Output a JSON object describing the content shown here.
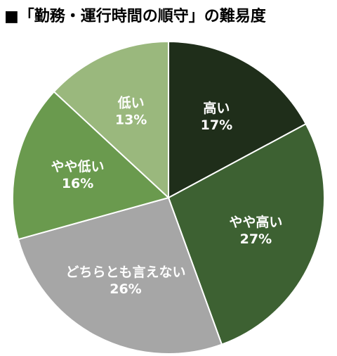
{
  "chart_data": {
    "type": "pie",
    "title": "■「勤務・運行時間の順守」の難易度",
    "categories": [
      "高い",
      "やや高い",
      "どちらとも言えない",
      "やや低い",
      "低い"
    ],
    "values": [
      17,
      27,
      26,
      16,
      13
    ],
    "value_labels": [
      "17%",
      "27%",
      "26%",
      "16%",
      "13%"
    ],
    "colors": [
      "#1f2e1a",
      "#3d6132",
      "#a6a6a6",
      "#6a9a4e",
      "#9ab87d"
    ]
  }
}
